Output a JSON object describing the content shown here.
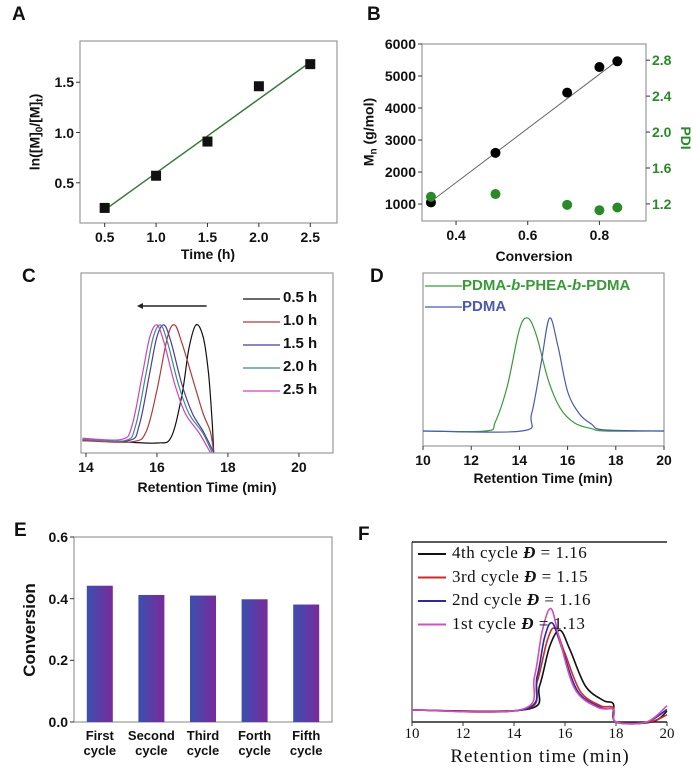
{
  "colors": {
    "fit_line_A": "#3a7a3a",
    "pdi": "#2a8a2a",
    "bar_start": "#3a4fb0",
    "bar_end": "#7a2a9a"
  },
  "chart_data": [
    {
      "panel": "A",
      "type": "scatter",
      "xlabel": "Time (h)",
      "ylabel_parts": [
        "ln([M]",
        "0",
        "/[M]",
        "t",
        ")"
      ],
      "xlim": [
        0.26,
        2.76
      ],
      "ylim": [
        0.1,
        1.91
      ],
      "xticks": [
        "0.5",
        "1.0",
        "1.5",
        "2.0",
        "2.5"
      ],
      "yticks": [
        "0.5",
        "1.0",
        "1.5"
      ],
      "x": [
        0.5,
        1.0,
        1.5,
        2.0,
        2.5
      ],
      "y": [
        0.25,
        0.57,
        0.91,
        1.46,
        1.68
      ],
      "fit": [
        [
          0.5,
          0.23
        ],
        [
          2.5,
          1.7
        ]
      ],
      "marker": "square"
    },
    {
      "panel": "B",
      "type": "scatter",
      "xlabel": "Conversion",
      "ylabel_parts": [
        "M",
        "n",
        " (g/mol)"
      ],
      "y2label": "PDI",
      "xlim": [
        0.305,
        0.93
      ],
      "ylim": [
        470,
        6000
      ],
      "y2lim": [
        1.01,
        2.98
      ],
      "xticks": [
        "0.4",
        "0.6",
        "0.8"
      ],
      "yticks": [
        "1000",
        "2000",
        "3000",
        "4000",
        "5000",
        "6000"
      ],
      "y2ticks": [
        "1.2",
        "1.6",
        "2.0",
        "2.4",
        "2.8"
      ],
      "x": [
        0.33,
        0.51,
        0.71,
        0.8,
        0.85
      ],
      "series": [
        {
          "axis": "left",
          "values": [
            1050,
            2600,
            4480,
            5280,
            5460
          ],
          "color": "#000000"
        },
        {
          "axis": "right",
          "values": [
            1.28,
            1.31,
            1.19,
            1.13,
            1.16
          ],
          "color": "#2a8a2a"
        }
      ],
      "fit": [
        [
          0.33,
          1080
        ],
        [
          0.86,
          5560
        ]
      ]
    },
    {
      "panel": "C",
      "type": "line",
      "xlabel": "Retention Time (min)",
      "xlim": [
        13.86,
        20.96
      ],
      "ylim": [
        -0.085,
        1.44
      ],
      "xticks": [
        "14",
        "16",
        "18",
        "20"
      ],
      "arrow": {
        "from": 17.4,
        "to": 15.55
      },
      "series": [
        {
          "name": "0.5 h",
          "color": "#111111",
          "points": [
            [
              13.9,
              0.02
            ],
            [
              15,
              0.01
            ],
            [
              16,
              0
            ],
            [
              16.4,
              0.05
            ],
            [
              16.7,
              0.4
            ],
            [
              16.9,
              0.8
            ],
            [
              17.1,
              1.0
            ],
            [
              17.3,
              0.9
            ],
            [
              17.45,
              0.6
            ],
            [
              17.55,
              0.2
            ],
            [
              17.6,
              -0.08
            ]
          ]
        },
        {
          "name": "1.0 h",
          "color": "#b03a3a",
          "points": [
            [
              13.9,
              0.02
            ],
            [
              15.3,
              0.01
            ],
            [
              15.7,
              0.1
            ],
            [
              16.0,
              0.45
            ],
            [
              16.3,
              0.9
            ],
            [
              16.5,
              1.0
            ],
            [
              16.7,
              0.85
            ],
            [
              17.0,
              0.55
            ],
            [
              17.3,
              0.25
            ],
            [
              17.5,
              0.1
            ],
            [
              17.6,
              -0.08
            ]
          ]
        },
        {
          "name": "1.5 h",
          "color": "#4b3ba0",
          "points": [
            [
              13.9,
              0.03
            ],
            [
              15.2,
              0.02
            ],
            [
              15.5,
              0.15
            ],
            [
              15.8,
              0.6
            ],
            [
              16.0,
              0.9
            ],
            [
              16.2,
              1.0
            ],
            [
              16.4,
              0.85
            ],
            [
              16.7,
              0.5
            ],
            [
              17.0,
              0.25
            ],
            [
              17.3,
              0.1
            ],
            [
              17.6,
              -0.08
            ]
          ]
        },
        {
          "name": "2.0 h",
          "color": "#3a8a8a",
          "points": [
            [
              13.9,
              0.03
            ],
            [
              15.1,
              0.02
            ],
            [
              15.4,
              0.15
            ],
            [
              15.7,
              0.6
            ],
            [
              15.9,
              0.9
            ],
            [
              16.1,
              1.0
            ],
            [
              16.3,
              0.85
            ],
            [
              16.6,
              0.5
            ],
            [
              16.9,
              0.25
            ],
            [
              17.3,
              0.08
            ],
            [
              17.55,
              -0.08
            ]
          ]
        },
        {
          "name": "2.5 h",
          "color": "#d040c0",
          "points": [
            [
              13.9,
              0.04
            ],
            [
              15.0,
              0.03
            ],
            [
              15.3,
              0.15
            ],
            [
              15.6,
              0.6
            ],
            [
              15.8,
              0.9
            ],
            [
              16.0,
              1.0
            ],
            [
              16.2,
              0.85
            ],
            [
              16.5,
              0.5
            ],
            [
              16.8,
              0.25
            ],
            [
              17.2,
              0.08
            ],
            [
              17.5,
              -0.08
            ]
          ]
        }
      ]
    },
    {
      "panel": "D",
      "type": "line",
      "xlabel": "Retention Time (min)",
      "xlim": [
        10,
        20
      ],
      "ylim": [
        -0.133,
        1.4
      ],
      "xticks": [
        "10",
        "12",
        "14",
        "16",
        "18",
        "20"
      ],
      "series": [
        {
          "name_parts": [
            "PDMA-",
            "b",
            "-PHEA-",
            "b",
            "-PDMA"
          ],
          "color": "#3a9a3a",
          "points": [
            [
              10,
              0
            ],
            [
              12.6,
              0
            ],
            [
              13.0,
              0.08
            ],
            [
              13.5,
              0.4
            ],
            [
              14.0,
              0.9
            ],
            [
              14.35,
              1
            ],
            [
              14.7,
              0.85
            ],
            [
              15.2,
              0.45
            ],
            [
              15.7,
              0.2
            ],
            [
              16.3,
              0.07
            ],
            [
              17,
              0.02
            ],
            [
              17.6,
              0
            ],
            [
              20,
              0
            ]
          ]
        },
        {
          "name": "PDMA",
          "color": "#4a5ab0",
          "points": [
            [
              10,
              0
            ],
            [
              14.1,
              0
            ],
            [
              14.5,
              0.15
            ],
            [
              14.9,
              0.6
            ],
            [
              15.25,
              1
            ],
            [
              15.6,
              0.75
            ],
            [
              16.0,
              0.35
            ],
            [
              16.5,
              0.15
            ],
            [
              17.0,
              0.06
            ],
            [
              17.5,
              0.01
            ],
            [
              20,
              0
            ]
          ]
        }
      ]
    },
    {
      "panel": "E",
      "type": "bar",
      "ylabel": "Conversion",
      "ylim": [
        0,
        0.6
      ],
      "yticks": [
        "0.0",
        "0.2",
        "0.4",
        "0.6"
      ],
      "categories": [
        "First cycle",
        "Second cycle",
        "Third cycle",
        "Forth cycle",
        "Fifth cycle"
      ],
      "values": [
        0.442,
        0.412,
        0.41,
        0.398,
        0.381
      ]
    },
    {
      "panel": "F",
      "type": "line",
      "xlabel": "Retention time (min)",
      "xlim": [
        10,
        20
      ],
      "ylim": [
        0,
        1
      ],
      "xticks": [
        "10",
        "12",
        "14",
        "16",
        "18",
        "20"
      ],
      "series": [
        {
          "name": "4th cycle",
          "symbol": "Đ",
          "value": "= 1.16",
          "color": "#111111",
          "points": [
            [
              10,
              0.067
            ],
            [
              14.5,
              0.07
            ],
            [
              15.0,
              0.2
            ],
            [
              15.4,
              0.42
            ],
            [
              15.8,
              0.51
            ],
            [
              16.2,
              0.4
            ],
            [
              16.8,
              0.2
            ],
            [
              17.5,
              0.12
            ],
            [
              17.9,
              0.1
            ],
            [
              18.0,
              0
            ],
            [
              19.4,
              0
            ],
            [
              20,
              0.06
            ]
          ]
        },
        {
          "name": "3rd cycle",
          "symbol": "Đ",
          "value": "= 1.15",
          "color": "#cc2a2a",
          "points": [
            [
              10,
              0.067
            ],
            [
              14.4,
              0.07
            ],
            [
              14.9,
              0.22
            ],
            [
              15.3,
              0.45
            ],
            [
              15.6,
              0.52
            ],
            [
              16.0,
              0.38
            ],
            [
              16.6,
              0.17
            ],
            [
              17.4,
              0.09
            ],
            [
              17.9,
              0.08
            ],
            [
              18.0,
              0
            ],
            [
              19.3,
              0
            ],
            [
              20,
              0.04
            ]
          ]
        },
        {
          "name": "2nd cycle",
          "symbol": "Đ",
          "value": "= 1.16",
          "color": "#2a2a9a",
          "points": [
            [
              10,
              0.067
            ],
            [
              14.4,
              0.07
            ],
            [
              14.9,
              0.25
            ],
            [
              15.2,
              0.47
            ],
            [
              15.5,
              0.55
            ],
            [
              15.9,
              0.4
            ],
            [
              16.5,
              0.17
            ],
            [
              17.4,
              0.08
            ],
            [
              17.9,
              0.07
            ],
            [
              18.0,
              0
            ],
            [
              19.2,
              0
            ],
            [
              20,
              0.07
            ]
          ]
        },
        {
          "name": "1st cycle",
          "symbol": "Đ",
          "value": "= 1.13",
          "color": "#d050c0",
          "points": [
            [
              10,
              0.067
            ],
            [
              14.3,
              0.07
            ],
            [
              14.8,
              0.25
            ],
            [
              15.1,
              0.5
            ],
            [
              15.45,
              0.63
            ],
            [
              15.8,
              0.45
            ],
            [
              16.4,
              0.18
            ],
            [
              17.3,
              0.08
            ],
            [
              17.9,
              0.07
            ],
            [
              18.0,
              0
            ],
            [
              19.2,
              0
            ],
            [
              20,
              0.09
            ]
          ]
        }
      ]
    }
  ],
  "panel_letters": [
    "A",
    "B",
    "C",
    "D",
    "E",
    "F"
  ]
}
